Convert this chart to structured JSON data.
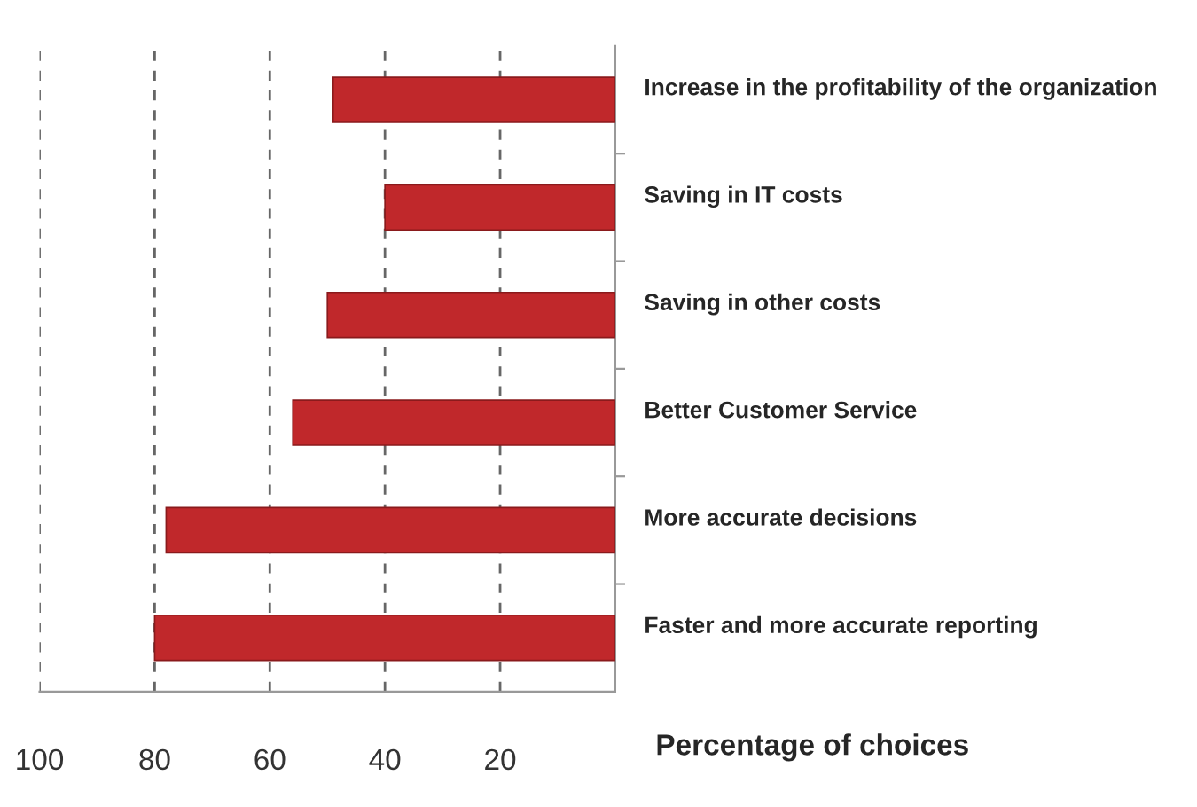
{
  "chart_data": {
    "type": "bar",
    "orientation": "horizontal",
    "xlabel": "Percentage of choices",
    "categories": [
      "Increase in the profitability of the organization",
      "Saving in IT costs",
      "Saving in other costs",
      "Better Customer Service",
      "More accurate decisions",
      "Faster and more accurate reporting"
    ],
    "values": [
      49,
      40,
      50,
      56,
      78,
      80
    ],
    "color": "#c0282b",
    "xlim": [
      100,
      0
    ],
    "xticks": [
      100,
      80,
      60,
      40,
      20,
      {
        "value": 0,
        "label": null
      }
    ],
    "grid": "x"
  }
}
